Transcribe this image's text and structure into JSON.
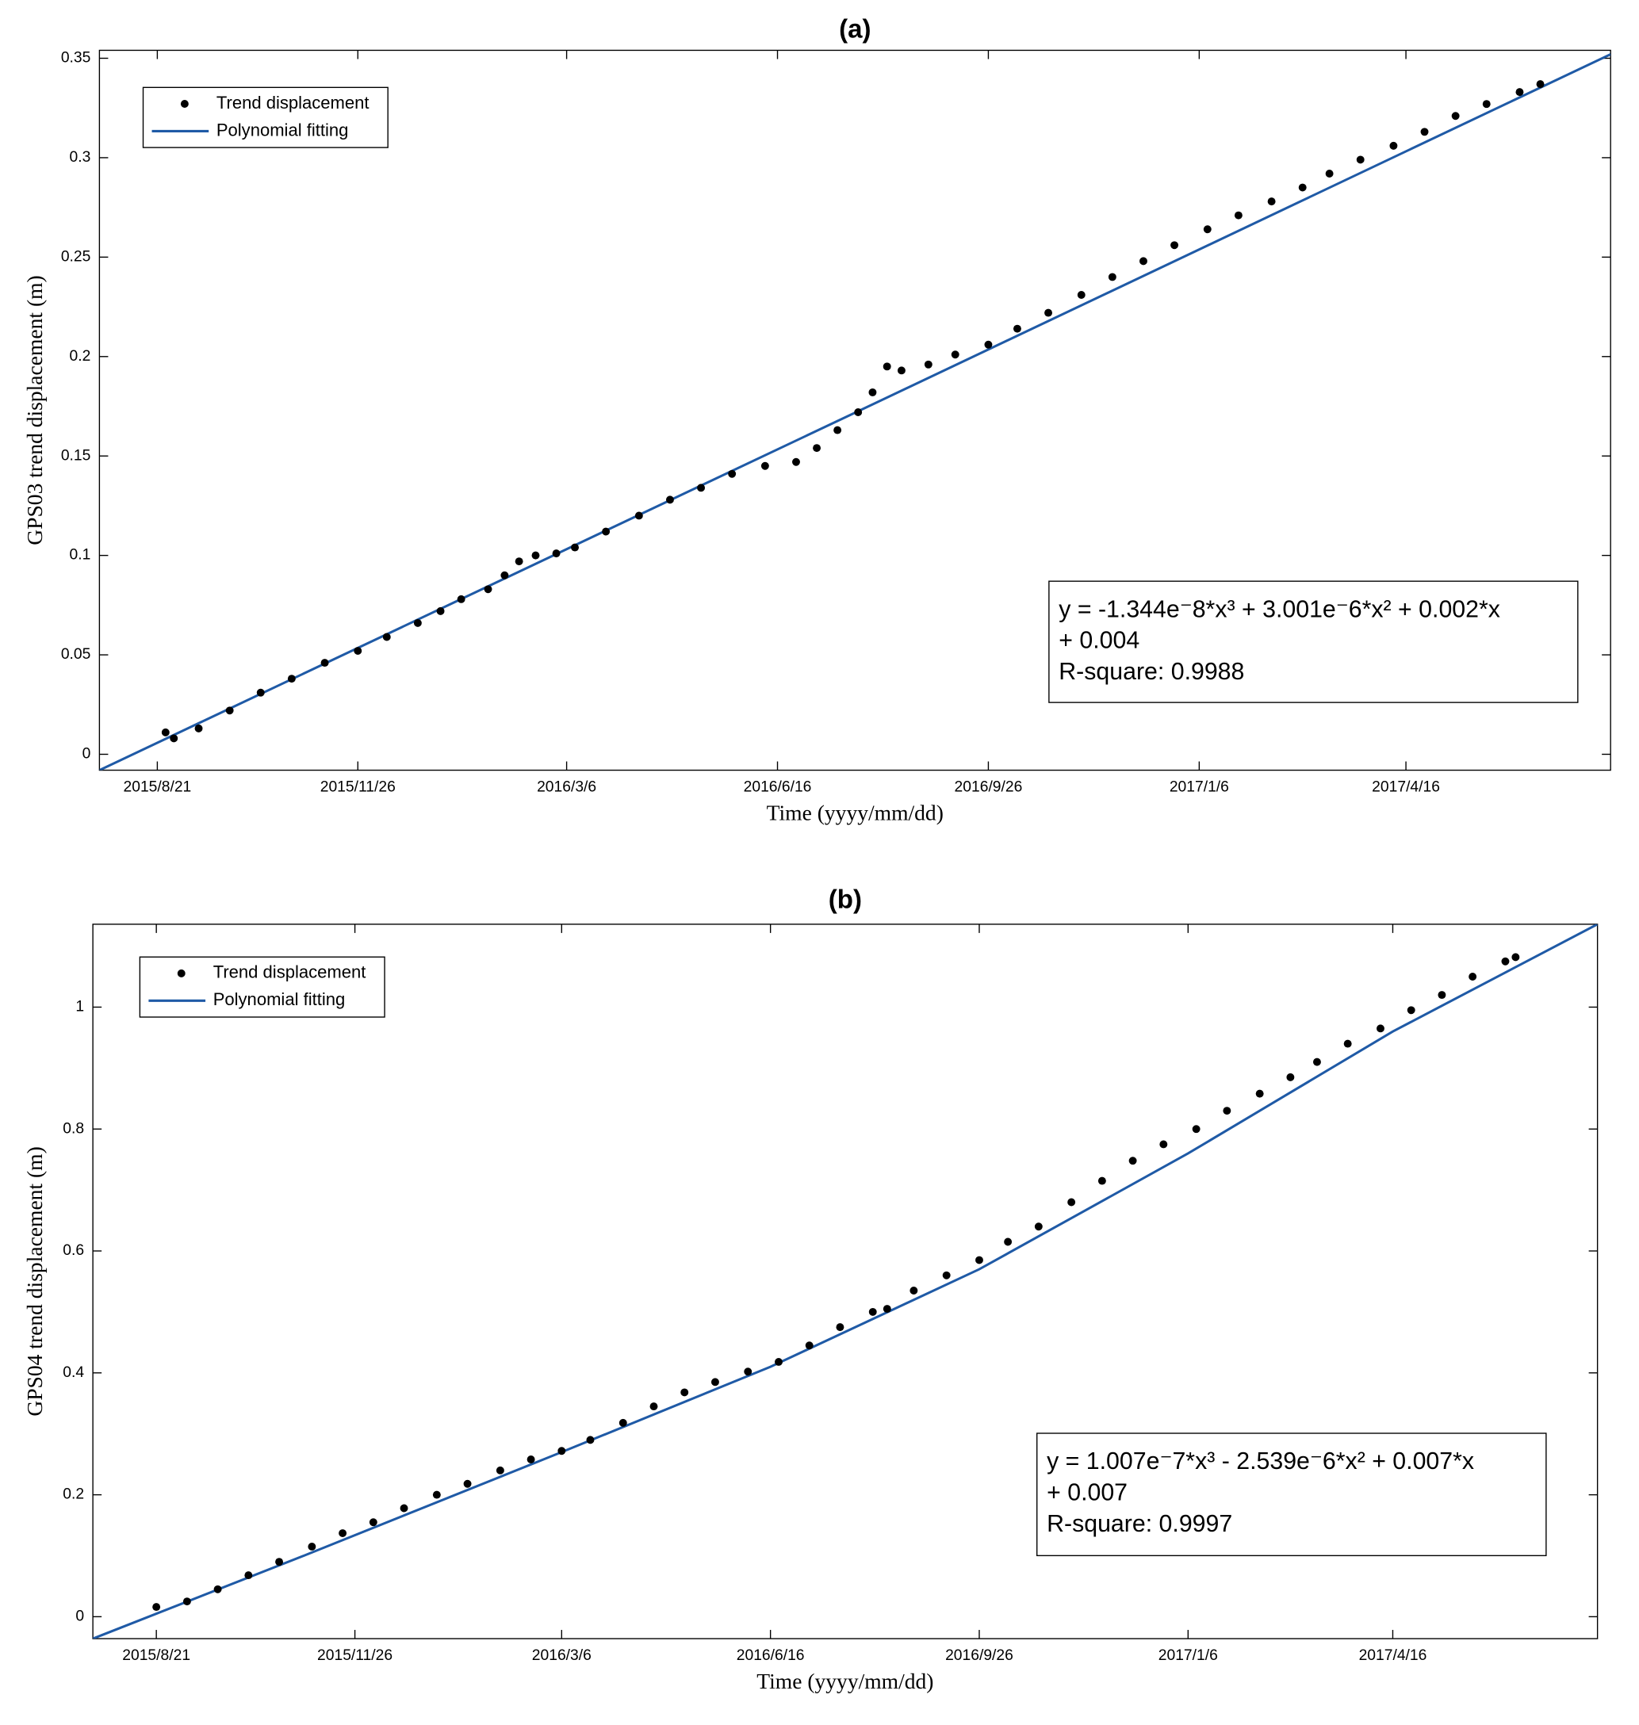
{
  "chart_data": [
    {
      "type": "scatter",
      "title": "(a)",
      "xlabel": "Time  (yyyy/mm/dd)",
      "ylabel": "GPS03  trend  displacement  (m)",
      "xlim": [
        "2015-07-24",
        "2017-07-24"
      ],
      "ylim": [
        -0.008,
        0.354
      ],
      "xticks": [
        {
          "value": "2015-08-21",
          "label": "2015/8/21"
        },
        {
          "value": "2015-11-26",
          "label": "2015/11/26"
        },
        {
          "value": "2016-03-06",
          "label": "2016/3/6"
        },
        {
          "value": "2016-06-16",
          "label": "2016/6/16"
        },
        {
          "value": "2016-09-26",
          "label": "2016/9/26"
        },
        {
          "value": "2017-01-06",
          "label": "2017/1/6"
        },
        {
          "value": "2017-04-16",
          "label": "2017/4/16"
        }
      ],
      "yticks": [
        0,
        0.05,
        0.1,
        0.15,
        0.2,
        0.25,
        0.3,
        0.35
      ],
      "legend": "upper left",
      "annotation": [
        "y = -1.344e⁻8*x³ + 3.001e⁻6*x² + 0.002*x",
        "+ 0.004",
        "R-square: 0.9988"
      ],
      "series": [
        {
          "name": "Trend displacement",
          "type": "scatter",
          "color": "#000000",
          "x": [
            "2015-08-25",
            "2015-08-29",
            "2015-09-10",
            "2015-09-25",
            "2015-10-10",
            "2015-10-25",
            "2015-11-10",
            "2015-11-26",
            "2015-12-10",
            "2015-12-25",
            "2016-01-05",
            "2016-01-15",
            "2016-01-28",
            "2016-02-05",
            "2016-02-12",
            "2016-02-20",
            "2016-03-01",
            "2016-03-10",
            "2016-03-25",
            "2016-04-10",
            "2016-04-25",
            "2016-05-10",
            "2016-05-25",
            "2016-06-10",
            "2016-06-25",
            "2016-07-05",
            "2016-07-15",
            "2016-07-25",
            "2016-08-01",
            "2016-08-08",
            "2016-08-15",
            "2016-08-28",
            "2016-09-10",
            "2016-09-26",
            "2016-10-10",
            "2016-10-25",
            "2016-11-10",
            "2016-11-25",
            "2016-12-10",
            "2016-12-25",
            "2017-01-10",
            "2017-01-25",
            "2017-02-10",
            "2017-02-25",
            "2017-03-10",
            "2017-03-25",
            "2017-04-10",
            "2017-04-25",
            "2017-05-10",
            "2017-05-25",
            "2017-06-10",
            "2017-06-20"
          ],
          "values": [
            0.011,
            0.008,
            0.013,
            0.022,
            0.031,
            0.038,
            0.046,
            0.052,
            0.059,
            0.066,
            0.072,
            0.078,
            0.083,
            0.09,
            0.097,
            0.1,
            0.101,
            0.104,
            0.112,
            0.12,
            0.128,
            0.134,
            0.141,
            0.145,
            0.147,
            0.154,
            0.163,
            0.172,
            0.182,
            0.195,
            0.193,
            0.196,
            0.201,
            0.206,
            0.214,
            0.222,
            0.231,
            0.24,
            0.248,
            0.256,
            0.264,
            0.271,
            0.278,
            0.285,
            0.292,
            0.299,
            0.306,
            0.313,
            0.321,
            0.327,
            0.333,
            0.337
          ]
        },
        {
          "name": "Polynomial fitting",
          "type": "line",
          "color": "#1f5aa6",
          "x": [
            "2015-07-24",
            "2016-07-24",
            "2017-07-24"
          ],
          "values": [
            -0.008,
            0.172,
            0.352
          ]
        }
      ]
    },
    {
      "type": "scatter",
      "title": "(b)",
      "xlabel": "Time  (yyyy/mm/dd)",
      "ylabel": "GPS04  trend  displacement  (m)",
      "xlim": [
        "2015-07-21",
        "2017-07-25"
      ],
      "ylim": [
        -0.036,
        1.136
      ],
      "xticks": [
        {
          "value": "2015-08-21",
          "label": "2015/8/21"
        },
        {
          "value": "2015-11-26",
          "label": "2015/11/26"
        },
        {
          "value": "2016-03-06",
          "label": "2016/3/6"
        },
        {
          "value": "2016-06-16",
          "label": "2016/6/16"
        },
        {
          "value": "2016-09-26",
          "label": "2016/9/26"
        },
        {
          "value": "2017-01-06",
          "label": "2017/1/6"
        },
        {
          "value": "2017-04-16",
          "label": "2017/4/16"
        }
      ],
      "yticks": [
        0,
        0.2,
        0.4,
        0.6,
        0.8,
        1
      ],
      "legend": "upper left",
      "annotation": [
        "y = 1.007e⁻7*x³ - 2.539e⁻6*x² + 0.007*x",
        " + 0.007",
        "R-square: 0.9997"
      ],
      "series": [
        {
          "name": "Trend displacement",
          "type": "scatter",
          "color": "#000000",
          "x": [
            "2015-08-21",
            "2015-09-05",
            "2015-09-20",
            "2015-10-05",
            "2015-10-20",
            "2015-11-05",
            "2015-11-20",
            "2015-12-05",
            "2015-12-20",
            "2016-01-05",
            "2016-01-20",
            "2016-02-05",
            "2016-02-20",
            "2016-03-06",
            "2016-03-20",
            "2016-04-05",
            "2016-04-20",
            "2016-05-05",
            "2016-05-20",
            "2016-06-05",
            "2016-06-20",
            "2016-07-05",
            "2016-07-20",
            "2016-08-05",
            "2016-08-12",
            "2016-08-25",
            "2016-09-10",
            "2016-09-26",
            "2016-10-10",
            "2016-10-25",
            "2016-11-10",
            "2016-11-25",
            "2016-12-10",
            "2016-12-25",
            "2017-01-10",
            "2017-01-25",
            "2017-02-10",
            "2017-02-25",
            "2017-03-10",
            "2017-03-25",
            "2017-04-10",
            "2017-04-25",
            "2017-05-10",
            "2017-05-25",
            "2017-06-10",
            "2017-06-15"
          ],
          "values": [
            0.016,
            0.025,
            0.045,
            0.068,
            0.09,
            0.115,
            0.137,
            0.155,
            0.178,
            0.2,
            0.218,
            0.24,
            0.258,
            0.272,
            0.29,
            0.318,
            0.345,
            0.368,
            0.385,
            0.402,
            0.418,
            0.445,
            0.475,
            0.5,
            0.505,
            0.535,
            0.56,
            0.585,
            0.615,
            0.64,
            0.68,
            0.715,
            0.748,
            0.775,
            0.8,
            0.83,
            0.858,
            0.885,
            0.91,
            0.94,
            0.965,
            0.995,
            1.02,
            1.05,
            1.075,
            1.082
          ]
        },
        {
          "name": "Polynomial fitting",
          "type": "line",
          "color": "#1f5aa6",
          "x": [
            "2015-07-21",
            "2015-11-01",
            "2016-03-06",
            "2016-06-16",
            "2016-09-26",
            "2017-01-06",
            "2017-04-16",
            "2017-07-25"
          ],
          "values": [
            -0.036,
            0.1,
            0.27,
            0.41,
            0.57,
            0.76,
            0.96,
            1.136
          ]
        }
      ]
    }
  ]
}
